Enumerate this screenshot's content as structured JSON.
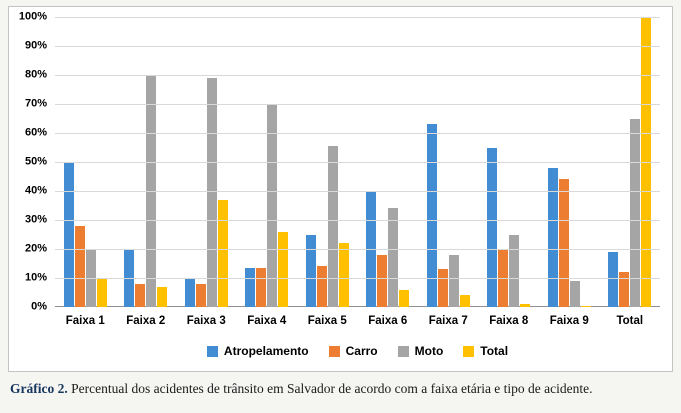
{
  "caption": {
    "label": "Gráfico 2.",
    "text": " Percentual dos acidentes de trânsito em Salvador de acordo com a faixa etária e tipo de acidente."
  },
  "chart_data": {
    "type": "bar",
    "title": "",
    "xlabel": "",
    "ylabel": "",
    "ylim": [
      0,
      100
    ],
    "grid": true,
    "legend_position": "bottom",
    "y_ticks": [
      "0%",
      "10%",
      "20%",
      "30%",
      "40%",
      "50%",
      "60%",
      "70%",
      "80%",
      "90%",
      "100%"
    ],
    "categories": [
      "Faixa 1",
      "Faixa 2",
      "Faixa 3",
      "Faixa 4",
      "Faixa 5",
      "Faixa 6",
      "Faixa 7",
      "Faixa 8",
      "Faixa 9",
      "Total"
    ],
    "series": [
      {
        "name": "Atropelamento",
        "color": "#418cd3",
        "values": [
          50,
          20,
          10,
          13.5,
          25,
          40,
          63,
          55,
          48,
          19
        ]
      },
      {
        "name": "Carro",
        "color": "#ed7d31",
        "values": [
          28,
          8,
          8,
          13.5,
          14,
          18,
          13,
          20,
          44,
          12
        ]
      },
      {
        "name": "Moto",
        "color": "#a5a5a5",
        "values": [
          19.5,
          80,
          79,
          70,
          55.5,
          34,
          18,
          25,
          9,
          65
        ]
      },
      {
        "name": "Total",
        "color": "#ffc000",
        "values": [
          10,
          7,
          37,
          26,
          22,
          6,
          4,
          1,
          0.5,
          100
        ]
      }
    ]
  }
}
